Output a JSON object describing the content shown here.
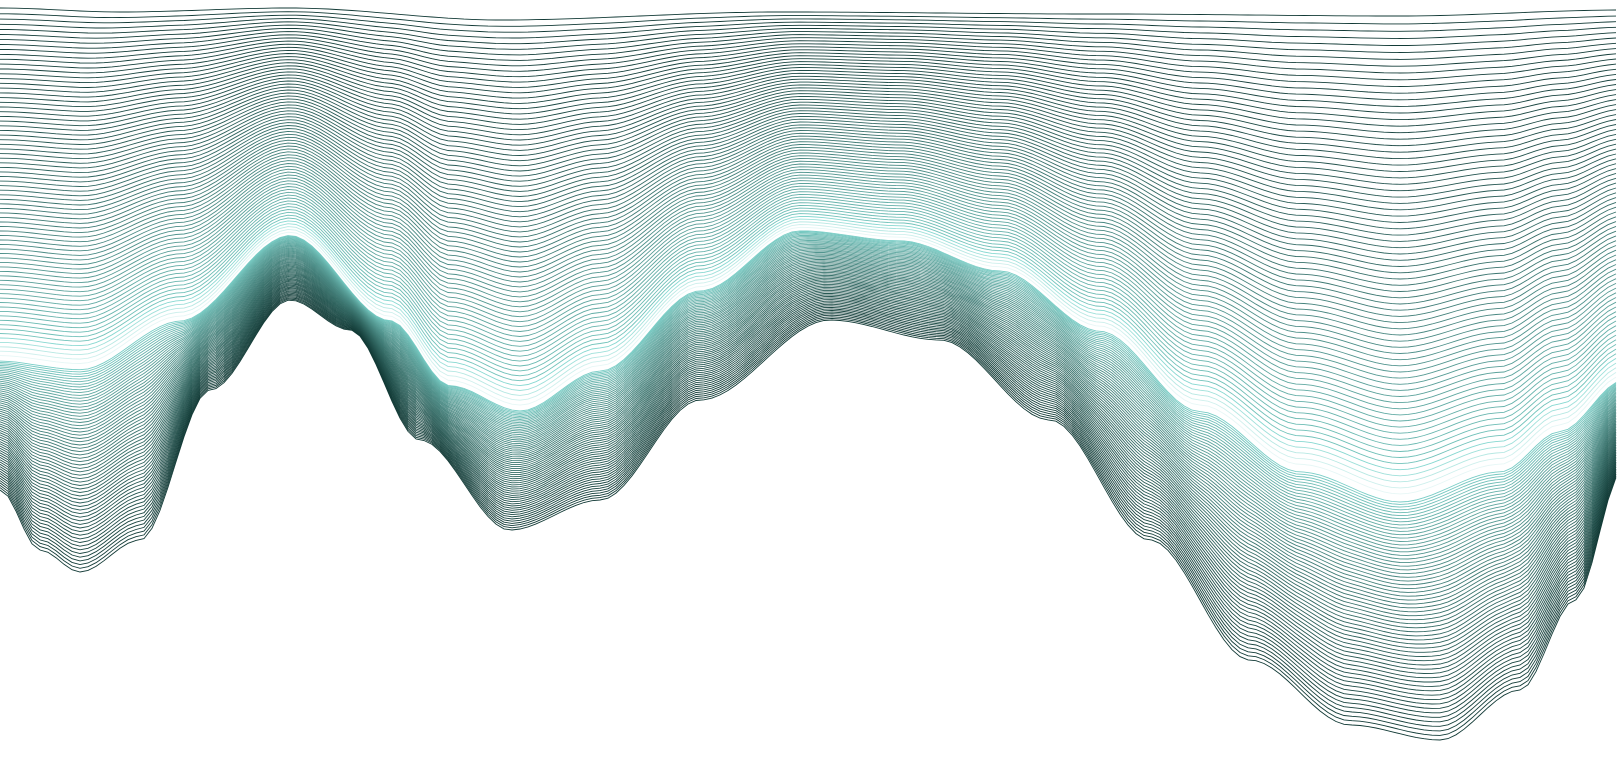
{
  "artwork": {
    "subject": "wave-line-art",
    "colors": {
      "background": "#ffffff",
      "dark_stroke": "#123a36",
      "light_stroke": "#7fd6ce",
      "peak_stroke": "#ffffff"
    },
    "line_count": 140
  }
}
